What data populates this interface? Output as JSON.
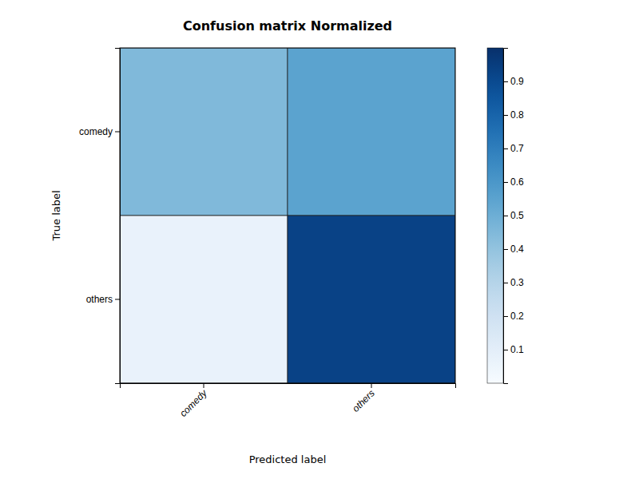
{
  "chart_data": {
    "type": "heatmap",
    "title": "Confusion matrix Normalized",
    "x_label": "Predicted label",
    "y_label": "True label",
    "categories": [
      "comedy",
      "others"
    ],
    "cells": [
      [
        0.45,
        0.55
      ],
      [
        0.07,
        0.93
      ]
    ],
    "color": "Blues",
    "color_range": [
      0.0,
      1.0
    ],
    "color_ticks": [
      0.1,
      0.2,
      0.3,
      0.4,
      0.5,
      0.6,
      0.7,
      0.8,
      0.9
    ]
  }
}
